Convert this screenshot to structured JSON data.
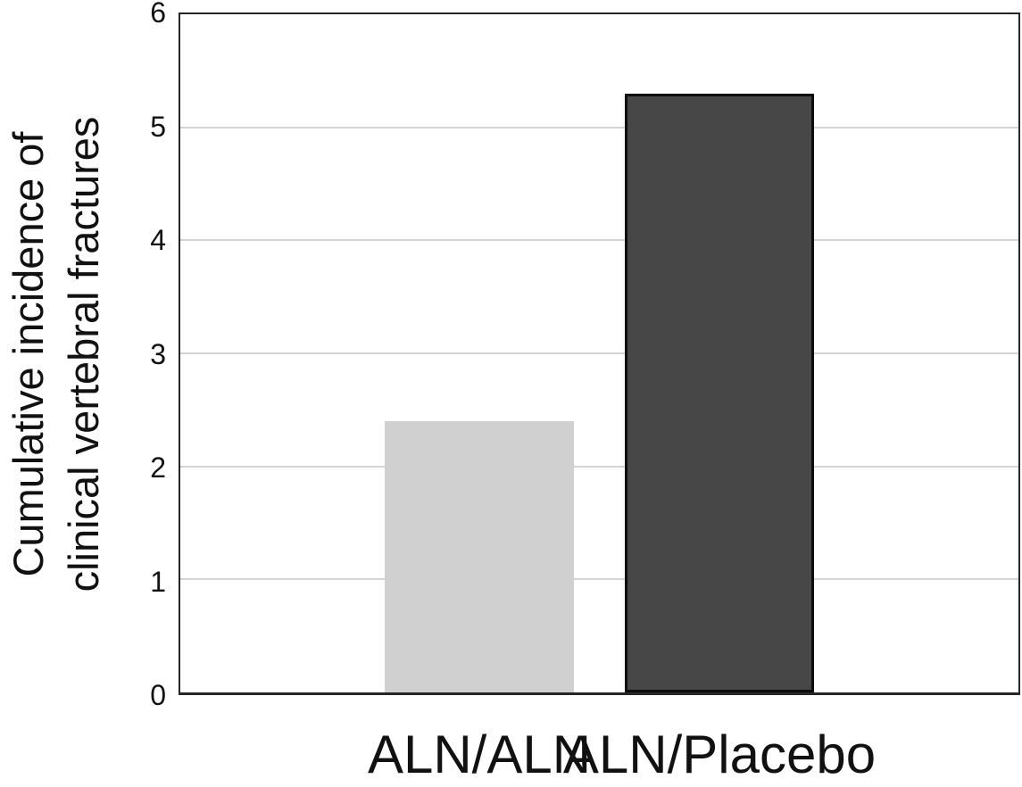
{
  "chart_data": {
    "type": "bar",
    "title": "",
    "xlabel": "",
    "ylabel": "Cumulative incidence of clinical vertebral fractures",
    "ylabel_lines": [
      "Cumulative incidence of",
      "clinical vertebral fractures"
    ],
    "categories": [
      "ALN/ALN",
      "ALN/Placebo"
    ],
    "values": [
      2.4,
      5.3
    ],
    "ylim": [
      0,
      6
    ],
    "yticks": [
      0,
      1,
      2,
      3,
      4,
      5,
      6
    ],
    "grid": true,
    "legend_position": "none",
    "colors": {
      "background": "#ffffff",
      "bar_fills": [
        "#d0d0d0",
        "#474747"
      ],
      "bar_borders": [
        "none",
        "#0d0d0d"
      ],
      "gridline": "#d4d4d4",
      "axis_box": "#262626",
      "text": "#111111"
    }
  }
}
